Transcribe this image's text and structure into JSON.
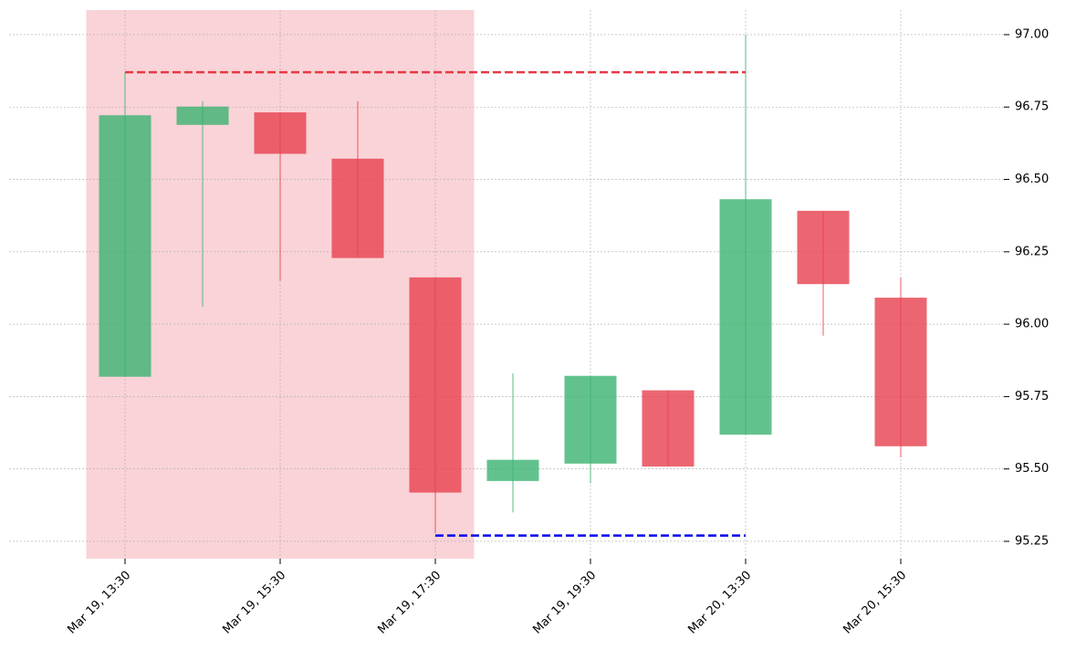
{
  "chart_data": {
    "type": "candlestick",
    "categories": [
      "Mar 19, 13:30",
      null,
      "Mar 19, 15:30",
      null,
      "Mar 19, 17:30",
      null,
      "Mar 19, 19:30",
      null,
      "Mar 20, 13:30",
      null,
      "Mar 20, 15:30"
    ],
    "open": [
      95.82,
      96.69,
      96.73,
      96.57,
      96.16,
      95.46,
      95.52,
      95.77,
      95.62,
      96.39,
      96.09
    ],
    "high": [
      96.87,
      96.77,
      96.73,
      96.77,
      96.16,
      95.83,
      95.82,
      95.77,
      97.0,
      96.39,
      96.16
    ],
    "low": [
      95.82,
      96.06,
      96.15,
      96.23,
      95.28,
      95.35,
      95.45,
      95.51,
      95.62,
      95.96,
      95.54
    ],
    "close": [
      96.72,
      96.75,
      96.59,
      96.23,
      95.42,
      95.53,
      95.82,
      95.51,
      96.43,
      96.14,
      95.58
    ],
    "up_color": "#3cb371",
    "down_color": "#e8414f",
    "ylim": [
      95.19,
      97.085
    ],
    "yticks": [
      {
        "value": 95.25,
        "label": "95.25"
      },
      {
        "value": 95.5,
        "label": "95.50"
      },
      {
        "value": 95.75,
        "label": "95.75"
      },
      {
        "value": 96,
        "label": "96.00"
      },
      {
        "value": 96.25,
        "label": "96.25"
      },
      {
        "value": 96.5,
        "label": "96.50"
      },
      {
        "value": 96.75,
        "label": "96.75"
      },
      {
        "value": 97,
        "label": "97.00"
      }
    ],
    "grid": true,
    "highlight": {
      "from": 0,
      "to": 4,
      "color": "#f9d3d7"
    },
    "levels": [
      {
        "value": 96.87,
        "from": 0,
        "to": 8,
        "color": "#e63946"
      },
      {
        "value": 95.27,
        "from": 4,
        "to": 8,
        "color": "#0000ee"
      }
    ]
  }
}
